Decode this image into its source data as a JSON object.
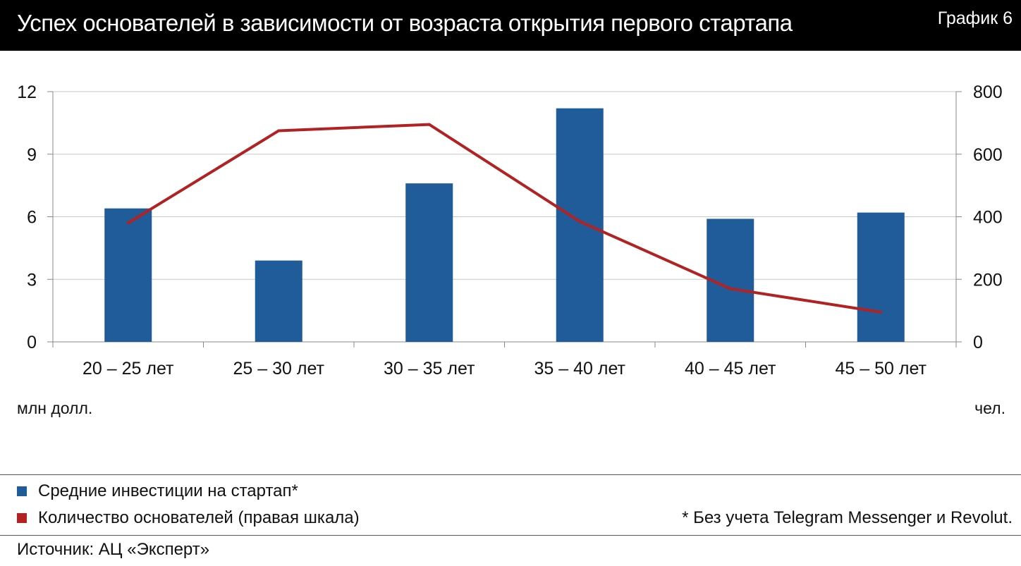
{
  "header": {
    "title": "Успех основателей в зависимости от возраста открытия первого стартапа",
    "label": "График 6"
  },
  "colors": {
    "bar": "#1f5c99",
    "line": "#b22222",
    "grid": "#c8c8c8",
    "axis": "#888888"
  },
  "chart_data": {
    "type": "bar",
    "categories": [
      "20 – 25 лет",
      "25 – 30 лет",
      "30 – 35 лет",
      "35 – 40 лет",
      "40 – 45 лет",
      "45 – 50 лет"
    ],
    "series": [
      {
        "name": "Средние инвестиции на стартап*",
        "type": "bar",
        "axis": "left",
        "values": [
          6.4,
          3.9,
          7.6,
          11.2,
          5.9,
          6.2
        ]
      },
      {
        "name": "Количество основателей (правая шкала)",
        "type": "line",
        "axis": "right",
        "values": [
          380,
          675,
          695,
          385,
          170,
          95
        ]
      }
    ],
    "y_left": {
      "min": 0,
      "max": 12,
      "ticks": [
        "0",
        "3",
        "6",
        "9",
        "12"
      ],
      "tick_values": [
        0,
        3,
        6,
        9,
        12
      ],
      "label": "млн долл."
    },
    "y_right": {
      "min": 0,
      "max": 800,
      "ticks": [
        "0",
        "200",
        "400",
        "600",
        "800"
      ],
      "tick_values": [
        0,
        200,
        400,
        600,
        800
      ],
      "label": "чел."
    },
    "grid": true,
    "legend_position": "bottom-left"
  },
  "legend": {
    "bar_label": "Средние инвестиции на стартап*",
    "line_label": "Количество основателей (правая шкала)"
  },
  "footnote": "* Без учета Telegram Messenger и Revolut.",
  "source": "Источник: АЦ «Эксперт»"
}
